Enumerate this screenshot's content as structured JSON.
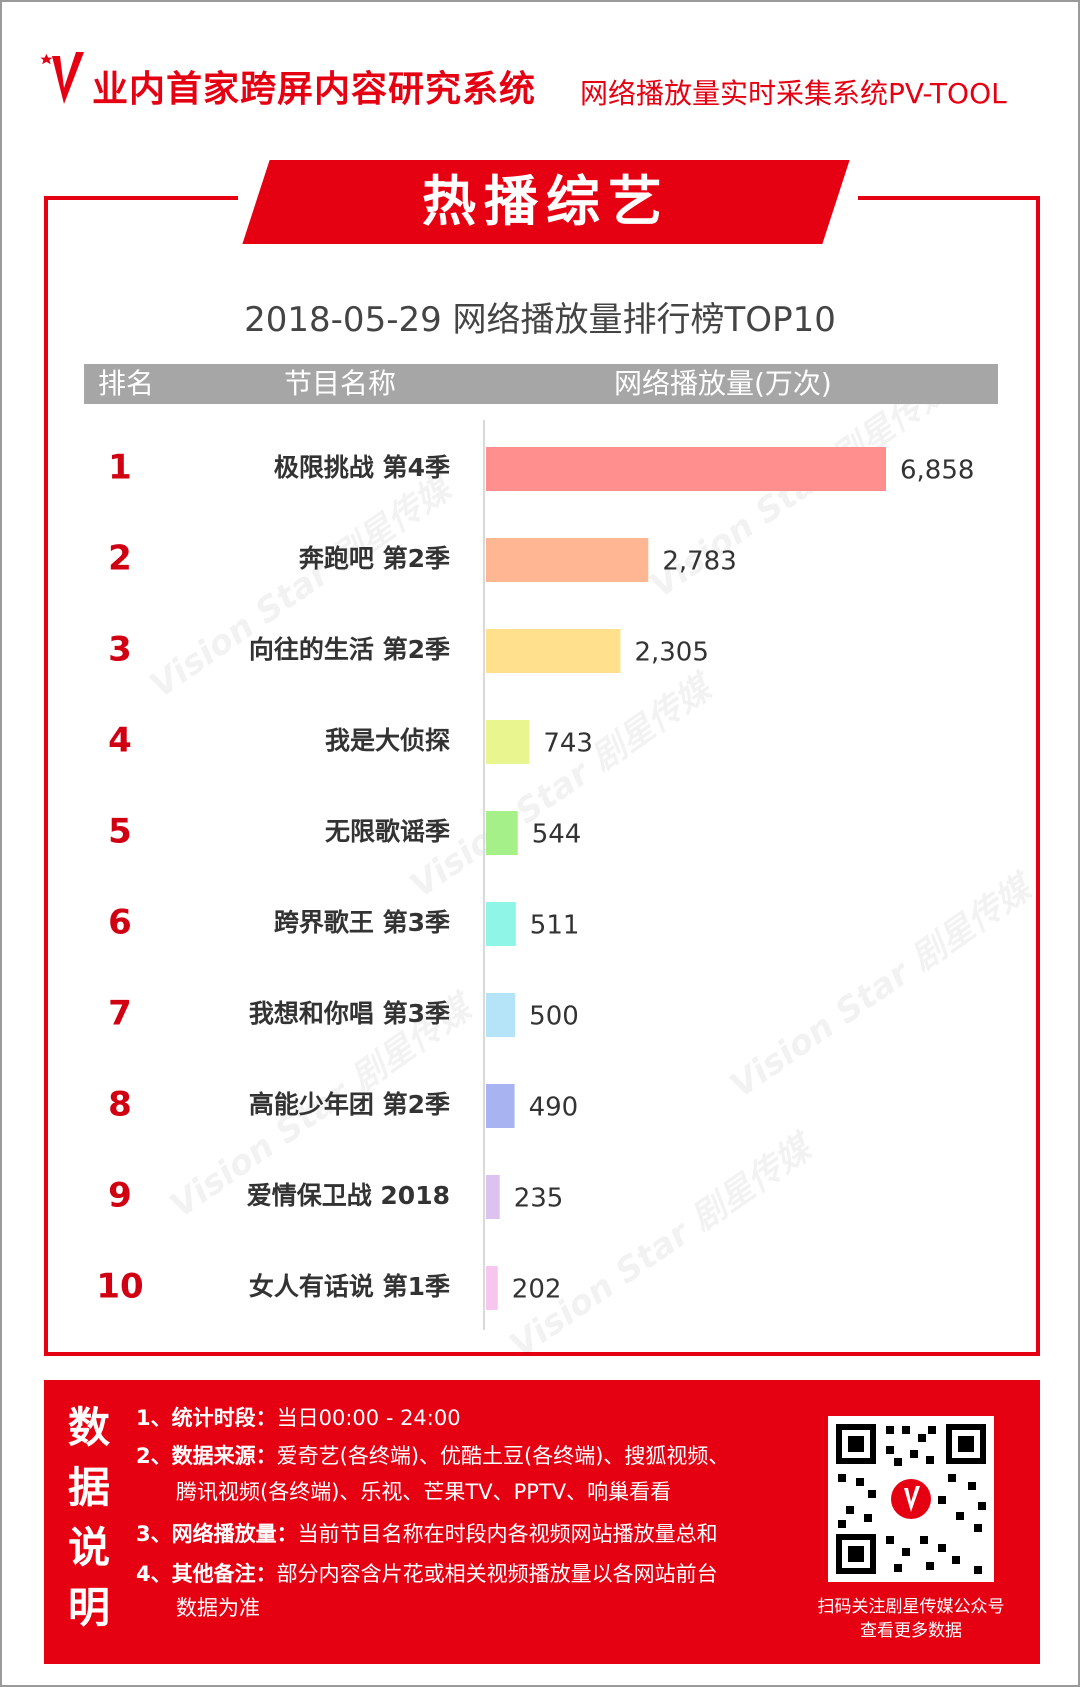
{
  "header": {
    "main": "业内首家跨屏内容研究系统",
    "sub": "网络播放量实时采集系统PV-TOOL"
  },
  "banner": "热播综艺",
  "columns": {
    "rank": "排名",
    "name": "节目名称",
    "value": "网络播放量(万次)"
  },
  "colors": {
    "accent": "#e50012",
    "bars": [
      "#ff8f8f",
      "#ffb692",
      "#ffe08c",
      "#e9f58f",
      "#a6f08a",
      "#8ff5e6",
      "#b5e3f7",
      "#a8b4f2",
      "#dcc2f0",
      "#f7c6ee"
    ]
  },
  "chart_data": {
    "type": "bar",
    "orientation": "horizontal",
    "title": "2018-05-29 网络播放量排行榜TOP10",
    "ranks": [
      "1",
      "2",
      "3",
      "4",
      "5",
      "6",
      "7",
      "8",
      "9",
      "10"
    ],
    "categories": [
      "极限挑战 第4季",
      "奔跑吧 第2季",
      "向往的生活 第2季",
      "我是大侦探",
      "无限歌谣季",
      "跨界歌王 第3季",
      "我想和你唱 第3季",
      "高能少年团 第2季",
      "爱情保卫战 2018",
      "女人有话说 第1季"
    ],
    "values": [
      6858,
      2783,
      2305,
      743,
      544,
      511,
      500,
      490,
      235,
      202
    ],
    "value_labels": [
      "6,858",
      "2,783",
      "2,305",
      "743",
      "544",
      "511",
      "500",
      "490",
      "235",
      "202"
    ],
    "xlim": [
      0,
      6858
    ]
  },
  "footer": {
    "side_label": [
      "数",
      "据",
      "说",
      "明"
    ],
    "notes": [
      {
        "label": "1、统计时段：",
        "text": "当日00:00 - 24:00"
      },
      {
        "label": "2、数据来源：",
        "text": "爱奇艺(各终端)、优酷土豆(各终端)、搜狐视频、"
      },
      {
        "label": "",
        "text": "腾讯视频(各终端)、乐视、芒果TV、PPTV、响巢看看"
      },
      {
        "label": "3、网络播放量：",
        "text": "当前节目名称在时段内各视频网站播放量总和"
      },
      {
        "label": "4、其他备注：",
        "text": "部分内容含片花或相关视频播放量以各网站前台"
      },
      {
        "label": "",
        "text": "数据为准"
      }
    ],
    "qr_caption_1": "扫码关注剧星传媒公众号",
    "qr_caption_2": "查看更多数据"
  }
}
